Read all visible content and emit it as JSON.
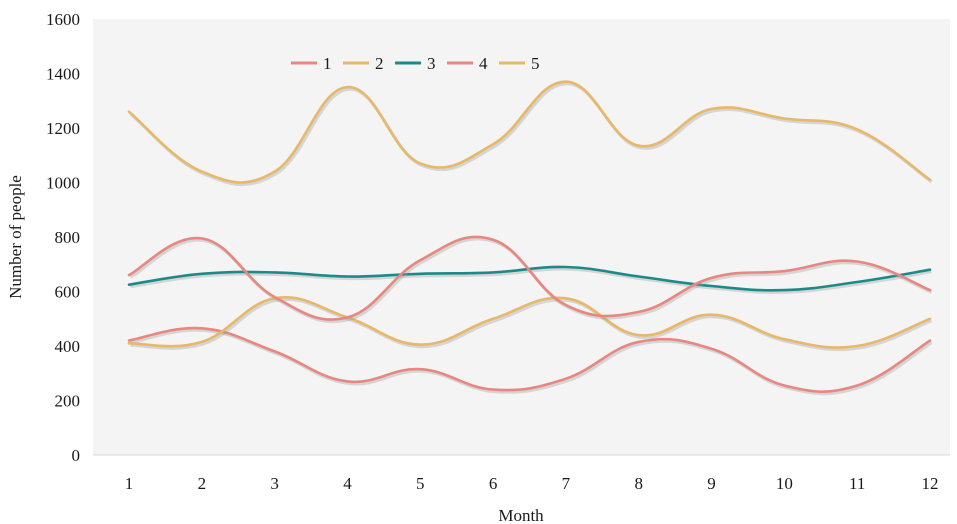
{
  "chart_data": {
    "type": "line",
    "title": "",
    "xlabel": "Month",
    "ylabel": "Number of people",
    "x": [
      1,
      2,
      3,
      4,
      5,
      6,
      7,
      8,
      9,
      10,
      11,
      12
    ],
    "x_tick_labels": [
      "1",
      "2",
      "3",
      "4",
      "5",
      "6",
      "7",
      "8",
      "9",
      "10",
      "11",
      "12"
    ],
    "ylim": [
      0,
      1600
    ],
    "y_ticks": [
      0,
      200,
      400,
      600,
      800,
      1000,
      1200,
      1400,
      1600
    ],
    "y_tick_labels": [
      "0",
      "200",
      "400",
      "600",
      "800",
      "1000",
      "1200",
      "1400",
      "1600"
    ],
    "legend_position": "top-left",
    "grid": false,
    "plot_background": "#f5f5f5",
    "series": [
      {
        "name": "1",
        "color": "#e8877f",
        "values": [
          420,
          465,
          380,
          270,
          315,
          240,
          280,
          415,
          390,
          255,
          255,
          420
        ]
      },
      {
        "name": "2",
        "color": "#e8b868",
        "values": [
          410,
          415,
          575,
          505,
          405,
          500,
          575,
          440,
          515,
          425,
          400,
          500
        ]
      },
      {
        "name": "3",
        "color": "#1d8a8a",
        "values": [
          625,
          665,
          670,
          655,
          665,
          670,
          690,
          655,
          620,
          605,
          635,
          680
        ]
      },
      {
        "name": "4",
        "color": "#e8877f",
        "values": [
          660,
          795,
          580,
          505,
          715,
          790,
          550,
          525,
          650,
          675,
          710,
          605
        ]
      },
      {
        "name": "5",
        "color": "#e8b868",
        "values": [
          1260,
          1040,
          1040,
          1350,
          1070,
          1140,
          1370,
          1135,
          1270,
          1235,
          1195,
          1010
        ]
      }
    ]
  }
}
